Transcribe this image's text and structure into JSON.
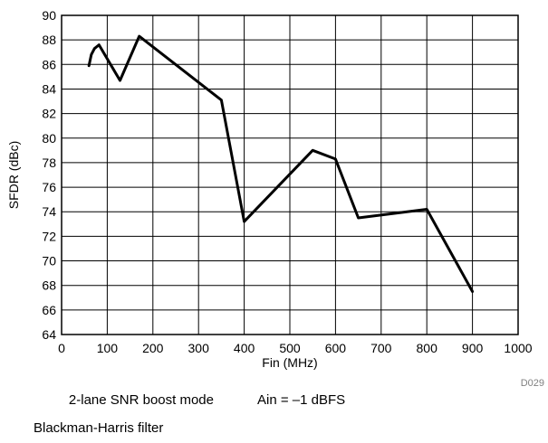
{
  "chart_data": {
    "type": "line",
    "xlabel": "Fin (MHz)",
    "ylabel": "SFDR (dBc)",
    "xlim": [
      0,
      1000
    ],
    "ylim": [
      64,
      90
    ],
    "x_ticks": [
      0,
      100,
      200,
      300,
      400,
      500,
      600,
      700,
      800,
      900,
      1000
    ],
    "y_ticks": [
      64,
      66,
      68,
      70,
      72,
      74,
      76,
      78,
      80,
      82,
      84,
      86,
      88,
      90
    ],
    "grid": true,
    "series": [
      {
        "x": [
          60,
          65,
          72,
          82,
          128,
          170,
          350,
          400,
          550,
          600,
          650,
          800,
          900
        ],
        "y": [
          85.9,
          86.8,
          87.3,
          87.6,
          84.7,
          88.3,
          83.1,
          73.2,
          79.0,
          78.3,
          73.5,
          74.2,
          67.5
        ]
      }
    ],
    "line_color": "#000000",
    "annotations": {
      "mode": "2-lane SNR boost mode",
      "ain": "Ain = –1 dBFS",
      "filter": "Blackman-Harris filter",
      "code": "D029"
    }
  }
}
